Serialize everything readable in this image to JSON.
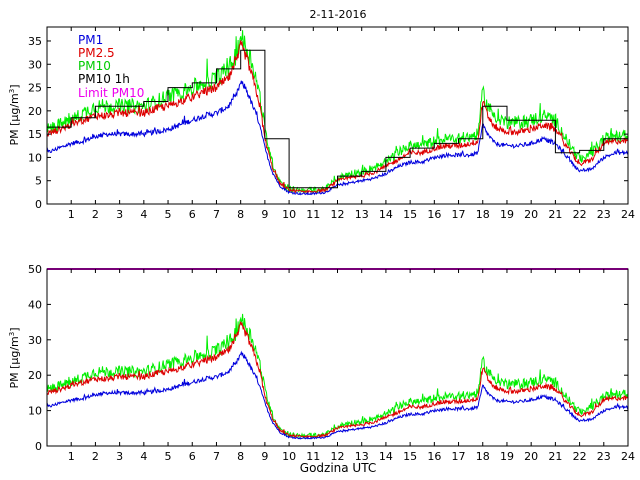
{
  "figure_title": "2-11-2016",
  "xlabel": "Godzina UTC",
  "chart_data": [
    {
      "type": "line",
      "title": "2-11-2016",
      "ylabel_main": "PM [",
      "ylabel_unit": "μg/m",
      "ylabel_sup": "3",
      "ylabel_close": "]",
      "xlim": [
        0,
        24
      ],
      "ylim": [
        0,
        38
      ],
      "xticks": [
        1,
        2,
        3,
        4,
        5,
        6,
        7,
        8,
        9,
        10,
        11,
        12,
        13,
        14,
        15,
        16,
        17,
        18,
        19,
        20,
        21,
        22,
        23,
        24
      ],
      "yticks": [
        0,
        5,
        10,
        15,
        20,
        25,
        30,
        35
      ],
      "legend_position": "top-left",
      "colors": {
        "pm1": "#0000dd",
        "pm25": "#dd0000",
        "pm10": "#00ee00",
        "pm10h": "#000000",
        "limit": "#ee00ee"
      },
      "legend": [
        {
          "key": "pm1",
          "label": "PM1"
        },
        {
          "key": "pm25",
          "label": "PM2.5"
        },
        {
          "key": "pm10",
          "label": "PM10"
        },
        {
          "key": "pm10h",
          "label": "PM10 1h"
        },
        {
          "key": "limit",
          "label": "Limit PM10"
        }
      ],
      "series": [
        {
          "name": "PM1",
          "key": "pm1",
          "x": [
            0,
            0.5,
            1,
            1.5,
            2,
            2.5,
            3,
            3.5,
            4,
            4.5,
            5,
            5.5,
            6,
            6.5,
            7,
            7.5,
            7.8,
            8,
            8.2,
            8.5,
            8.8,
            9,
            9.3,
            9.6,
            10,
            10.5,
            11,
            11.5,
            12,
            12.5,
            13,
            13.5,
            14,
            14.5,
            15,
            15.5,
            16,
            16.5,
            17,
            17.5,
            17.8,
            18,
            18.2,
            18.5,
            19,
            19.5,
            20,
            20.5,
            21,
            21.5,
            22,
            22.5,
            23,
            23.5
          ],
          "y": [
            11,
            12,
            13,
            13.5,
            14.5,
            15,
            15,
            15,
            15,
            15.5,
            16,
            17,
            18,
            19,
            19.5,
            21,
            23,
            26,
            25,
            21,
            17,
            12,
            7,
            4,
            2.5,
            2.2,
            2.2,
            2.5,
            4,
            4.5,
            5,
            5.5,
            6.5,
            8,
            9,
            9,
            10,
            10.5,
            10.5,
            10.5,
            11,
            17,
            15,
            13,
            12.5,
            12.5,
            13,
            14,
            13,
            10,
            7,
            7.5,
            10,
            11
          ]
        },
        {
          "name": "PM2.5",
          "key": "pm25",
          "x": [
            0,
            0.5,
            1,
            1.5,
            2,
            2.5,
            3,
            3.5,
            4,
            4.5,
            5,
            5.5,
            6,
            6.5,
            7,
            7.5,
            7.8,
            8,
            8.2,
            8.5,
            8.8,
            9,
            9.3,
            9.6,
            10,
            10.5,
            11,
            11.5,
            12,
            12.5,
            13,
            13.5,
            14,
            14.5,
            15,
            15.5,
            16,
            16.5,
            17,
            17.5,
            17.8,
            18,
            18.2,
            18.5,
            19,
            19.5,
            20,
            20.5,
            21,
            21.5,
            22,
            22.5,
            23,
            23.5
          ],
          "y": [
            15,
            16,
            17,
            18,
            19,
            19,
            19.5,
            19.5,
            19.5,
            20.5,
            21,
            22,
            23,
            24,
            25,
            27,
            30,
            34,
            32,
            27,
            21,
            14,
            8,
            4.5,
            3,
            2.7,
            2.7,
            3,
            5,
            5.5,
            6,
            6.8,
            8,
            9.5,
            11,
            11,
            12,
            12.5,
            12.5,
            13,
            13.5,
            22,
            19,
            16.5,
            15.5,
            15.5,
            16,
            17,
            16,
            12,
            8.5,
            9.5,
            13,
            13.5
          ]
        },
        {
          "name": "PM10",
          "key": "pm10",
          "x": [
            0,
            0.5,
            1,
            1.5,
            2,
            2.5,
            3,
            3.5,
            4,
            4.5,
            5,
            5.5,
            6,
            6.5,
            7,
            7.5,
            7.8,
            8,
            8.2,
            8.5,
            8.8,
            9,
            9.3,
            9.6,
            10,
            10.5,
            11,
            11.5,
            12,
            12.5,
            13,
            13.5,
            14,
            14.5,
            15,
            15.5,
            16,
            16.5,
            17,
            17.5,
            17.8,
            18,
            18.2,
            18.5,
            19,
            19.5,
            20,
            20.5,
            21,
            21.5,
            22,
            22.5,
            23,
            23.5
          ],
          "y": [
            16,
            17,
            18,
            19.5,
            21,
            21,
            21,
            21,
            21,
            22,
            23,
            24,
            25,
            26,
            27,
            29,
            32,
            36,
            34,
            30,
            23,
            16,
            9,
            5,
            3.2,
            3,
            3,
            3.3,
            5.5,
            6.5,
            7,
            7.8,
            9,
            11,
            12.5,
            12.5,
            13.5,
            14,
            14,
            14.5,
            15,
            24,
            21,
            19,
            17.5,
            17.5,
            18,
            19,
            18,
            13.5,
            9.5,
            11,
            14,
            14.5
          ]
        },
        {
          "name": "PM10 1h",
          "key": "pm10h",
          "step": true,
          "x": [
            0,
            1,
            2,
            3,
            4,
            5,
            6,
            7,
            8,
            9,
            10,
            11,
            12,
            13,
            14,
            15,
            16,
            17,
            18,
            19,
            20,
            21,
            22,
            23
          ],
          "y": [
            16.5,
            18.5,
            21,
            21,
            22,
            25,
            26,
            29,
            33,
            14,
            3.5,
            3.5,
            6,
            7,
            10,
            12,
            13,
            14,
            21,
            18,
            18,
            11,
            11.5,
            14
          ]
        }
      ]
    },
    {
      "type": "line",
      "title": "",
      "xlabel": "Godzina UTC",
      "ylabel_main": "PM [",
      "ylabel_unit": "μg/m",
      "ylabel_sup": "3",
      "ylabel_close": "]",
      "xlim": [
        0,
        24
      ],
      "ylim": [
        0,
        50
      ],
      "xticks": [
        1,
        2,
        3,
        4,
        5,
        6,
        7,
        8,
        9,
        10,
        11,
        12,
        13,
        14,
        15,
        16,
        17,
        18,
        19,
        20,
        21,
        22,
        23,
        24
      ],
      "yticks": [
        0,
        10,
        20,
        30,
        40,
        50
      ],
      "limit": 50,
      "series_from_top_panel": [
        "pm1",
        "pm25",
        "pm10"
      ]
    }
  ]
}
